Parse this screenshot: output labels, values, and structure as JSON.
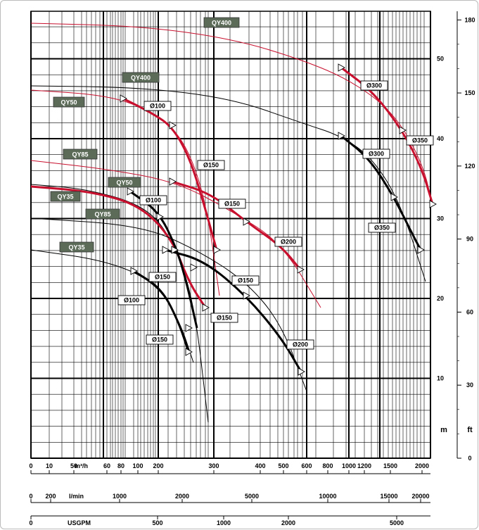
{
  "chart_data": {
    "type": "line",
    "axes": {
      "left_m": {
        "ticks": [
          10,
          20,
          30,
          40,
          50
        ]
      },
      "right_m": {
        "ticks": [
          10,
          20,
          30,
          40,
          50
        ]
      },
      "right_ft": {
        "ticks": [
          0,
          30,
          60,
          90,
          120,
          150,
          180
        ],
        "unit": "ft"
      },
      "unit_m": "m",
      "flow_m3h": {
        "unit": "m³/h",
        "ticks": [
          "0",
          "10",
          "50",
          "60",
          "80",
          "100",
          "200",
          "300",
          "400",
          "500",
          "600",
          "800",
          "1000",
          "1200",
          "1500",
          "2000"
        ]
      },
      "flow_lmin": {
        "unit": "l/min",
        "ticks": [
          "0",
          "200",
          "1000",
          "2000",
          "5000",
          "10000",
          "15000",
          "20000"
        ]
      },
      "flow_usgpm": {
        "unit": "USGPM",
        "ticks": [
          "0",
          "500",
          "1000",
          "2000",
          "5000"
        ]
      }
    },
    "models": [
      {
        "name": "QY400",
        "impeller": "Ø300"
      },
      {
        "name": "QY400",
        "impeller": "Ø350"
      },
      {
        "name": "QY50",
        "impeller": "Ø100"
      },
      {
        "name": "QY50",
        "impeller": "Ø150"
      },
      {
        "name": "QY85",
        "impeller": "Ø150"
      },
      {
        "name": "QY85",
        "impeller": "Ø200"
      },
      {
        "name": "QY35",
        "impeller": "Ø100"
      },
      {
        "name": "QY35",
        "impeller": "Ø150"
      },
      {
        "name": "QY85",
        "impeller": "Ø150"
      },
      {
        "name": "QY85",
        "impeller": "Ø200"
      }
    ],
    "model_labels": [
      "QY400",
      "QY400",
      "QY50",
      "QY85",
      "QY50",
      "QY35",
      "QY85",
      "QY35"
    ],
    "impeller_labels": [
      "Ø300",
      "Ø350",
      "Ø300",
      "Ø350",
      "Ø100",
      "Ø150",
      "Ø150",
      "Ø200",
      "Ø100",
      "Ø150",
      "Ø150",
      "Ø100",
      "Ø150",
      "Ø150",
      "Ø200"
    ],
    "colors": {
      "red": "#c8102e",
      "black": "#000000",
      "label_bg": "#5b6b58",
      "grid": "#000000"
    }
  }
}
